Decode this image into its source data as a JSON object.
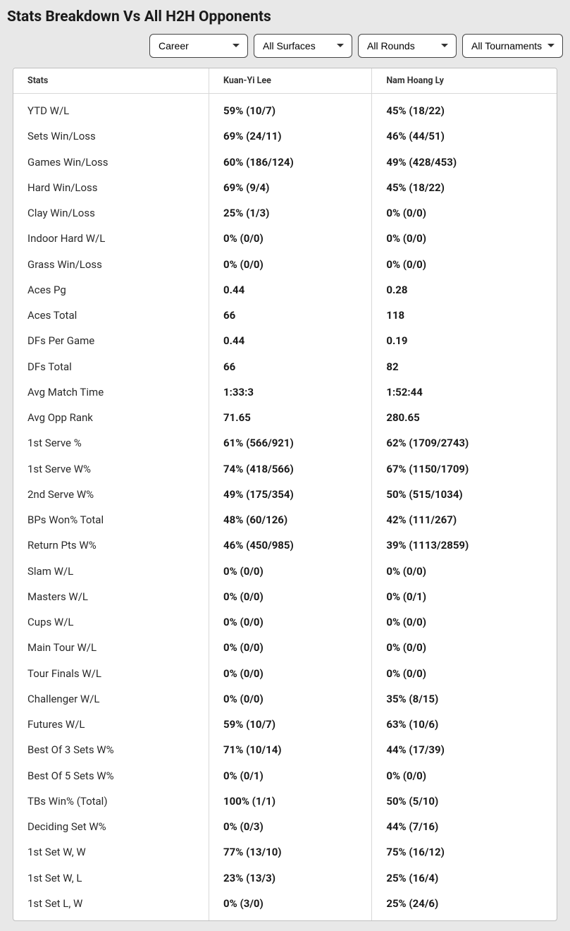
{
  "title": "Stats Breakdown Vs All H2H Opponents",
  "filters": {
    "period": {
      "selected": "Career",
      "options": [
        "Career"
      ]
    },
    "surface": {
      "selected": "All Surfaces",
      "options": [
        "All Surfaces"
      ]
    },
    "round": {
      "selected": "All Rounds",
      "options": [
        "All Rounds"
      ]
    },
    "tourney": {
      "selected": "All Tournaments",
      "options": [
        "All Tournaments"
      ]
    }
  },
  "columns": {
    "stats": "Stats",
    "p1": "Kuan-Yi Lee",
    "p2": "Nam Hoang Ly"
  },
  "rows": [
    {
      "stat": "YTD W/L",
      "p1": "59% (10/7)",
      "p2": "45% (18/22)"
    },
    {
      "stat": "Sets Win/Loss",
      "p1": "69% (24/11)",
      "p2": "46% (44/51)"
    },
    {
      "stat": "Games Win/Loss",
      "p1": "60% (186/124)",
      "p2": "49% (428/453)"
    },
    {
      "stat": "Hard Win/Loss",
      "p1": "69% (9/4)",
      "p2": "45% (18/22)"
    },
    {
      "stat": "Clay Win/Loss",
      "p1": "25% (1/3)",
      "p2": "0% (0/0)"
    },
    {
      "stat": "Indoor Hard W/L",
      "p1": "0% (0/0)",
      "p2": "0% (0/0)"
    },
    {
      "stat": "Grass Win/Loss",
      "p1": "0% (0/0)",
      "p2": "0% (0/0)"
    },
    {
      "stat": "Aces Pg",
      "p1": "0.44",
      "p2": "0.28"
    },
    {
      "stat": "Aces Total",
      "p1": "66",
      "p2": "118"
    },
    {
      "stat": "DFs Per Game",
      "p1": "0.44",
      "p2": "0.19"
    },
    {
      "stat": "DFs Total",
      "p1": "66",
      "p2": "82"
    },
    {
      "stat": "Avg Match Time",
      "p1": "1:33:3",
      "p2": "1:52:44"
    },
    {
      "stat": "Avg Opp Rank",
      "p1": "71.65",
      "p2": "280.65"
    },
    {
      "stat": "1st Serve %",
      "p1": "61% (566/921)",
      "p2": "62% (1709/2743)"
    },
    {
      "stat": "1st Serve W%",
      "p1": "74% (418/566)",
      "p2": "67% (1150/1709)"
    },
    {
      "stat": "2nd Serve W%",
      "p1": "49% (175/354)",
      "p2": "50% (515/1034)"
    },
    {
      "stat": "BPs Won% Total",
      "p1": "48% (60/126)",
      "p2": "42% (111/267)"
    },
    {
      "stat": "Return Pts W%",
      "p1": "46% (450/985)",
      "p2": "39% (1113/2859)"
    },
    {
      "stat": "Slam W/L",
      "p1": "0% (0/0)",
      "p2": "0% (0/0)"
    },
    {
      "stat": "Masters W/L",
      "p1": "0% (0/0)",
      "p2": "0% (0/1)"
    },
    {
      "stat": "Cups W/L",
      "p1": "0% (0/0)",
      "p2": "0% (0/0)"
    },
    {
      "stat": "Main Tour W/L",
      "p1": "0% (0/0)",
      "p2": "0% (0/0)"
    },
    {
      "stat": "Tour Finals W/L",
      "p1": "0% (0/0)",
      "p2": "0% (0/0)"
    },
    {
      "stat": "Challenger W/L",
      "p1": "0% (0/0)",
      "p2": "35% (8/15)"
    },
    {
      "stat": "Futures W/L",
      "p1": "59% (10/7)",
      "p2": "63% (10/6)"
    },
    {
      "stat": "Best Of 3 Sets W%",
      "p1": "71% (10/14)",
      "p2": "44% (17/39)"
    },
    {
      "stat": "Best Of 5 Sets W%",
      "p1": "0% (0/1)",
      "p2": "0% (0/0)"
    },
    {
      "stat": "TBs Win% (Total)",
      "p1": "100% (1/1)",
      "p2": "50% (5/10)"
    },
    {
      "stat": "Deciding Set W%",
      "p1": "0% (0/3)",
      "p2": "44% (7/16)"
    },
    {
      "stat": "1st Set W, W",
      "p1": "77% (13/10)",
      "p2": "75% (16/12)"
    },
    {
      "stat": "1st Set W, L",
      "p1": "23% (13/3)",
      "p2": "25% (16/4)"
    },
    {
      "stat": "1st Set L, W",
      "p1": "0% (3/0)",
      "p2": "25% (24/6)"
    }
  ]
}
